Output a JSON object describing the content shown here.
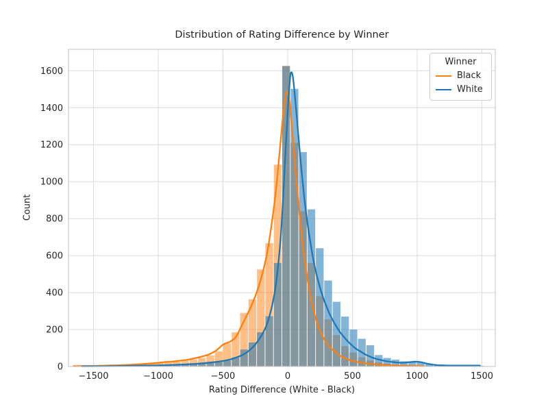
{
  "chart_data": {
    "type": "histogram+kde",
    "title": "Distribution of Rating Difference by Winner",
    "xlabel": "Rating Difference (White - Black)",
    "ylabel": "Count",
    "x_ticks": [
      -1500,
      -1000,
      -500,
      0,
      500,
      1000,
      1500
    ],
    "y_ticks": [
      0,
      200,
      400,
      600,
      800,
      1000,
      1200,
      1400,
      1600
    ],
    "xlim": [
      -1693,
      1603
    ],
    "ylim": [
      0,
      1716
    ],
    "grid": true,
    "bin_width": 65,
    "bin_starts": [
      -1670,
      -1605,
      -1540,
      -1475,
      -1410,
      -1345,
      -1280,
      -1215,
      -1150,
      -1085,
      -1020,
      -955,
      -890,
      -825,
      -760,
      -695,
      -630,
      -565,
      -500,
      -435,
      -370,
      -305,
      -240,
      -175,
      -110,
      -45,
      20,
      85,
      150,
      215,
      280,
      345,
      410,
      475,
      540,
      605,
      670,
      735,
      800,
      865,
      930,
      995,
      1060,
      1125,
      1190,
      1255,
      1320,
      1385,
      1450
    ],
    "series": [
      {
        "name": "Black",
        "color": "#ff7f0e",
        "bar_opacity": 0.5,
        "counts": [
          2,
          3,
          3,
          4,
          5,
          6,
          7,
          9,
          12,
          16,
          18,
          21,
          26,
          31,
          38,
          46,
          60,
          82,
          125,
          185,
          290,
          364,
          525,
          667,
          1092,
          1627,
          1210,
          840,
          560,
          380,
          255,
          170,
          110,
          75,
          50,
          33,
          22,
          15,
          10,
          7,
          5,
          4,
          3,
          2,
          1,
          1,
          0,
          0,
          0
        ],
        "kde": [
          [
            -1655,
            2
          ],
          [
            -1550,
            3
          ],
          [
            -1450,
            4
          ],
          [
            -1350,
            6
          ],
          [
            -1250,
            8
          ],
          [
            -1150,
            12
          ],
          [
            -1050,
            17
          ],
          [
            -1000,
            20
          ],
          [
            -950,
            24
          ],
          [
            -900,
            26
          ],
          [
            -850,
            30
          ],
          [
            -800,
            34
          ],
          [
            -750,
            40
          ],
          [
            -700,
            47
          ],
          [
            -650,
            56
          ],
          [
            -600,
            68
          ],
          [
            -550,
            88
          ],
          [
            -500,
            118
          ],
          [
            -470,
            128
          ],
          [
            -440,
            136
          ],
          [
            -400,
            160
          ],
          [
            -360,
            215
          ],
          [
            -320,
            270
          ],
          [
            -280,
            330
          ],
          [
            -240,
            400
          ],
          [
            -200,
            490
          ],
          [
            -160,
            610
          ],
          [
            -120,
            790
          ],
          [
            -90,
            960
          ],
          [
            -60,
            1180
          ],
          [
            -40,
            1330
          ],
          [
            -20,
            1450
          ],
          [
            -10,
            1485
          ],
          [
            0,
            1480
          ],
          [
            15,
            1430
          ],
          [
            40,
            1230
          ],
          [
            70,
            980
          ],
          [
            100,
            760
          ],
          [
            130,
            580
          ],
          [
            160,
            440
          ],
          [
            200,
            300
          ],
          [
            240,
            210
          ],
          [
            280,
            150
          ],
          [
            320,
            110
          ],
          [
            360,
            82
          ],
          [
            400,
            60
          ],
          [
            450,
            42
          ],
          [
            500,
            30
          ],
          [
            550,
            23
          ],
          [
            600,
            17
          ],
          [
            650,
            13
          ],
          [
            700,
            10
          ],
          [
            750,
            8
          ],
          [
            800,
            6
          ],
          [
            850,
            5
          ],
          [
            900,
            4
          ],
          [
            950,
            3
          ],
          [
            1000,
            3
          ],
          [
            1050,
            2
          ]
        ]
      },
      {
        "name": "White",
        "color": "#1f77b4",
        "bar_opacity": 0.55,
        "counts": [
          1,
          1,
          1,
          2,
          2,
          2,
          3,
          3,
          4,
          5,
          6,
          7,
          8,
          10,
          12,
          15,
          19,
          24,
          32,
          48,
          92,
          130,
          185,
          272,
          560,
          1625,
          1502,
          1160,
          850,
          640,
          465,
          350,
          270,
          200,
          150,
          115,
          62,
          46,
          37,
          28,
          26,
          22,
          12,
          8,
          5,
          4,
          3,
          3,
          4
        ],
        "kde": [
          [
            -1590,
            1
          ],
          [
            -1400,
            2
          ],
          [
            -1250,
            3
          ],
          [
            -1100,
            5
          ],
          [
            -1000,
            6
          ],
          [
            -900,
            8
          ],
          [
            -800,
            11
          ],
          [
            -700,
            15
          ],
          [
            -600,
            21
          ],
          [
            -550,
            25
          ],
          [
            -500,
            30
          ],
          [
            -450,
            37
          ],
          [
            -400,
            48
          ],
          [
            -350,
            62
          ],
          [
            -300,
            85
          ],
          [
            -250,
            120
          ],
          [
            -200,
            170
          ],
          [
            -160,
            230
          ],
          [
            -120,
            330
          ],
          [
            -90,
            450
          ],
          [
            -60,
            650
          ],
          [
            -40,
            850
          ],
          [
            -20,
            1120
          ],
          [
            0,
            1380
          ],
          [
            15,
            1530
          ],
          [
            25,
            1590
          ],
          [
            40,
            1565
          ],
          [
            60,
            1430
          ],
          [
            80,
            1270
          ],
          [
            100,
            1110
          ],
          [
            130,
            900
          ],
          [
            160,
            740
          ],
          [
            200,
            570
          ],
          [
            240,
            450
          ],
          [
            280,
            360
          ],
          [
            320,
            290
          ],
          [
            360,
            235
          ],
          [
            400,
            190
          ],
          [
            440,
            155
          ],
          [
            480,
            125
          ],
          [
            520,
            100
          ],
          [
            560,
            82
          ],
          [
            600,
            65
          ],
          [
            640,
            52
          ],
          [
            680,
            42
          ],
          [
            720,
            35
          ],
          [
            760,
            29
          ],
          [
            800,
            25
          ],
          [
            840,
            22
          ],
          [
            880,
            20
          ],
          [
            920,
            22
          ],
          [
            960,
            25
          ],
          [
            1000,
            26
          ],
          [
            1040,
            22
          ],
          [
            1080,
            15
          ],
          [
            1120,
            10
          ],
          [
            1160,
            7
          ],
          [
            1200,
            6
          ],
          [
            1260,
            5
          ],
          [
            1320,
            5
          ],
          [
            1380,
            5
          ],
          [
            1440,
            5
          ],
          [
            1485,
            5
          ]
        ]
      }
    ],
    "legend": {
      "title": "Winner",
      "entries": [
        {
          "label": "Black",
          "color": "#ff7f0e"
        },
        {
          "label": "White",
          "color": "#1f77b4"
        }
      ],
      "position": "upper right"
    },
    "style": {
      "background": "#ffffff",
      "grid_color": "#dcdcdc",
      "spine_color": "#cccccc",
      "text_color": "#262626",
      "tick_font_px": 13
    }
  }
}
